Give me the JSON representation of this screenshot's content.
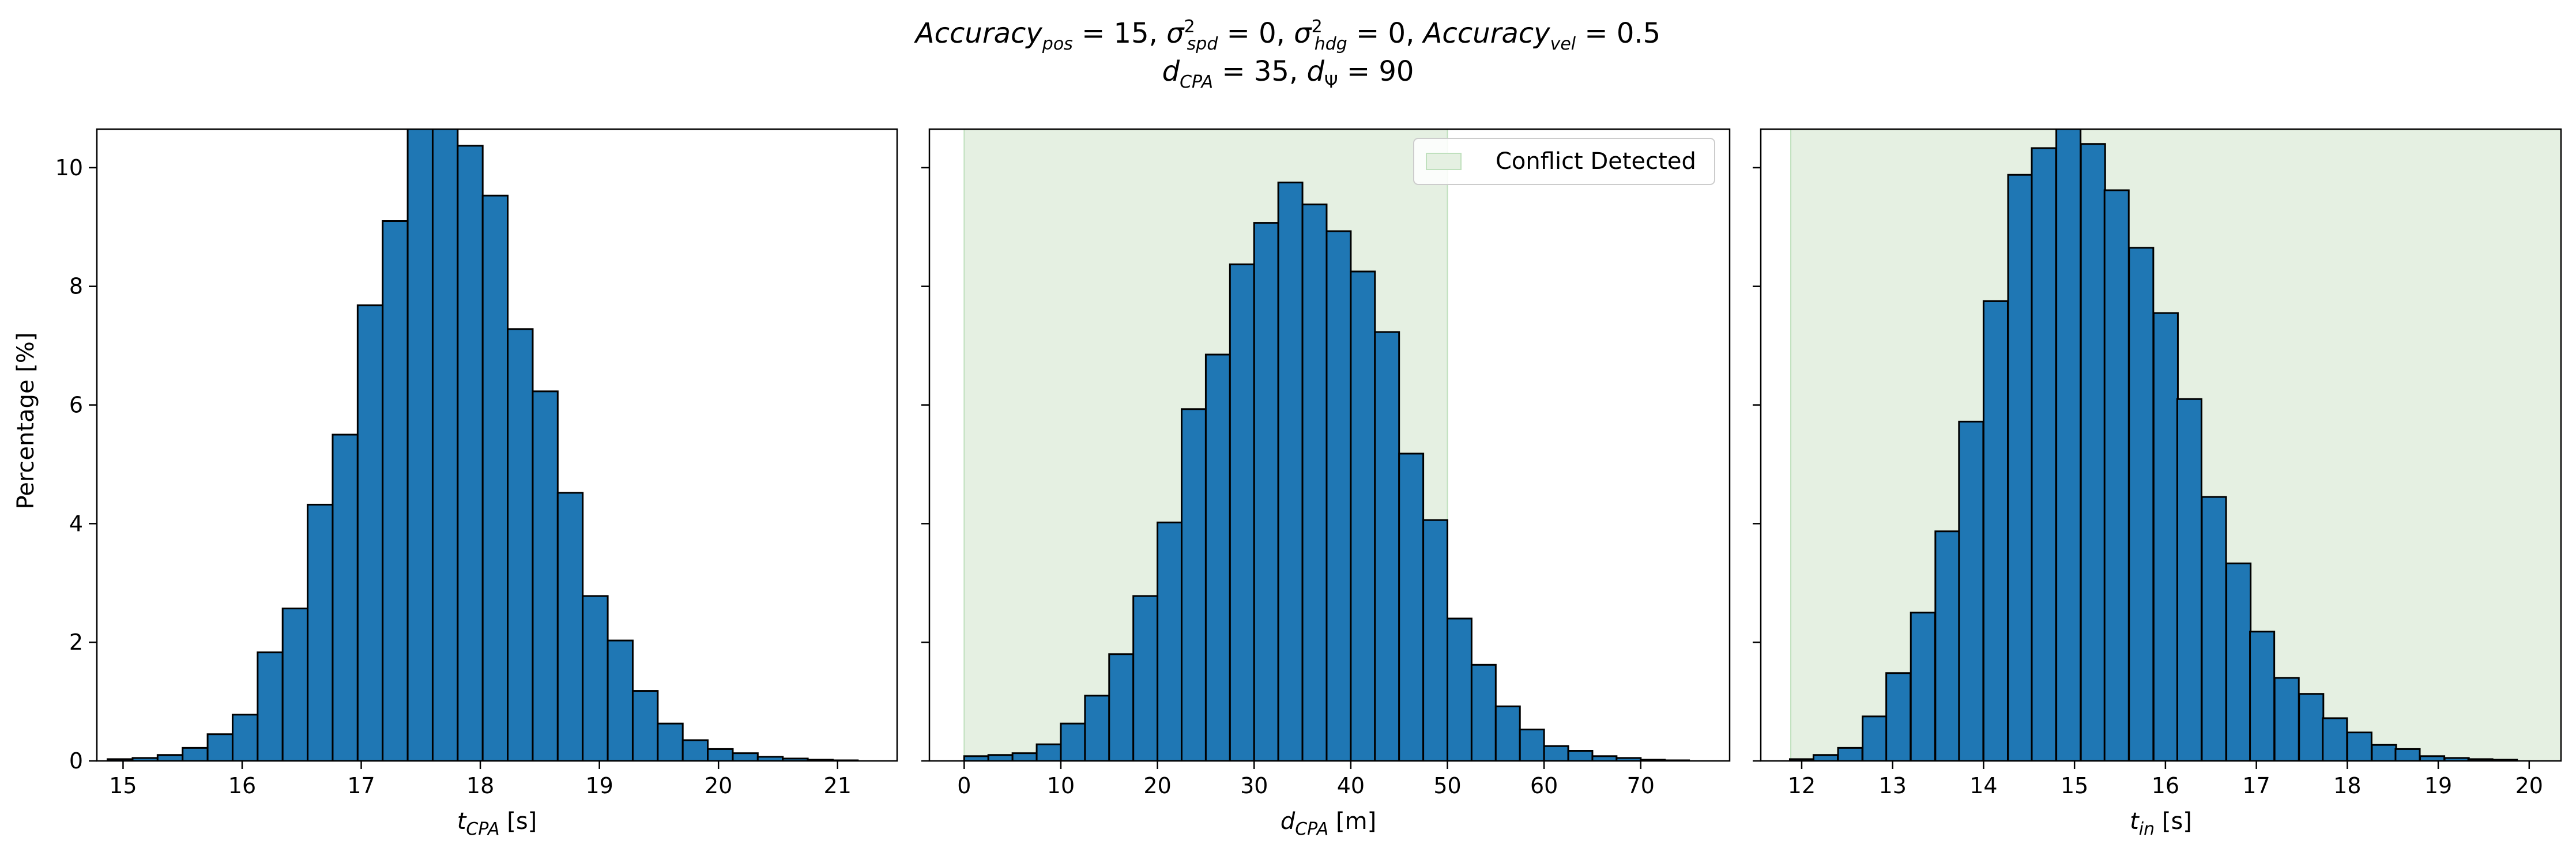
{
  "title": {
    "line1_parts": [
      "Accuracy",
      "pos",
      " = 15, ",
      "σ",
      "2",
      "spd",
      " = 0, ",
      "σ",
      "2",
      "hdg",
      " = 0, ",
      "Accuracy",
      "vel",
      " = 0.5"
    ],
    "line2_parts": [
      "d",
      "CPA",
      " = 35, ",
      "d",
      "Ψ",
      " = 90"
    ]
  },
  "colors": {
    "bar_fill": "#1f77b4",
    "bar_edge": "#000000",
    "shade": "#e5f0e2",
    "shade_edge": "#bfe0bd"
  },
  "chart_data": [
    {
      "type": "bar",
      "xlabel_main": "t",
      "xlabel_sub": "CPA",
      "xlabel_unit": " [s]",
      "ylabel": "Percentage [%]",
      "xlim": [
        14.78,
        21.5
      ],
      "ylim": [
        0,
        10.65
      ],
      "xticks": [
        "15",
        "16",
        "17",
        "18",
        "19",
        "20",
        "21"
      ],
      "yticks": [
        "0",
        "2",
        "4",
        "6",
        "8",
        "10"
      ],
      "bin_width": 0.21,
      "bins": [
        [
          14.87,
          0.03
        ],
        [
          15.08,
          0.05
        ],
        [
          15.29,
          0.1
        ],
        [
          15.5,
          0.22
        ],
        [
          15.71,
          0.45
        ],
        [
          15.92,
          0.78
        ],
        [
          16.13,
          1.83
        ],
        [
          16.34,
          2.57
        ],
        [
          16.55,
          4.32
        ],
        [
          16.76,
          5.5
        ],
        [
          16.97,
          7.68
        ],
        [
          17.18,
          9.1
        ],
        [
          17.39,
          10.8
        ],
        [
          17.6,
          10.75
        ],
        [
          17.81,
          10.37
        ],
        [
          18.02,
          9.53
        ],
        [
          18.23,
          7.28
        ],
        [
          18.44,
          6.23
        ],
        [
          18.65,
          4.52
        ],
        [
          18.86,
          2.78
        ],
        [
          19.07,
          2.03
        ],
        [
          19.28,
          1.18
        ],
        [
          19.49,
          0.63
        ],
        [
          19.7,
          0.35
        ],
        [
          19.91,
          0.2
        ],
        [
          20.12,
          0.13
        ],
        [
          20.33,
          0.07
        ],
        [
          20.54,
          0.04
        ],
        [
          20.75,
          0.02
        ],
        [
          20.96,
          0.01
        ]
      ]
    },
    {
      "type": "bar",
      "xlabel_main": "d",
      "xlabel_sub": "CPA",
      "xlabel_unit": " [m]",
      "xlim": [
        -3.6,
        79.2
      ],
      "ylim": [
        0,
        10.65
      ],
      "xticks": [
        "0",
        "10",
        "20",
        "30",
        "40",
        "50",
        "60",
        "70"
      ],
      "yticks": [
        "0",
        "2",
        "4",
        "6",
        "8",
        "10"
      ],
      "shade": [
        0,
        50
      ],
      "legend": {
        "label": "Conflict Detected",
        "position": "top-right"
      },
      "bin_width": 2.5,
      "bins": [
        [
          0.0,
          0.08
        ],
        [
          2.5,
          0.1
        ],
        [
          5.0,
          0.13
        ],
        [
          7.5,
          0.28
        ],
        [
          10.0,
          0.63
        ],
        [
          12.5,
          1.1
        ],
        [
          15.0,
          1.8
        ],
        [
          17.5,
          2.78
        ],
        [
          20.0,
          4.02
        ],
        [
          22.5,
          5.93
        ],
        [
          25.0,
          6.85
        ],
        [
          27.5,
          8.37
        ],
        [
          30.0,
          9.07
        ],
        [
          32.5,
          9.75
        ],
        [
          35.0,
          9.38
        ],
        [
          37.5,
          8.93
        ],
        [
          40.0,
          8.25
        ],
        [
          42.5,
          7.23
        ],
        [
          45.0,
          5.18
        ],
        [
          47.5,
          4.06
        ],
        [
          50.0,
          2.4
        ],
        [
          52.5,
          1.62
        ],
        [
          55.0,
          0.92
        ],
        [
          57.5,
          0.53
        ],
        [
          60.0,
          0.25
        ],
        [
          62.5,
          0.17
        ],
        [
          65.0,
          0.08
        ],
        [
          67.5,
          0.05
        ],
        [
          70.0,
          0.02
        ],
        [
          72.5,
          0.01
        ]
      ]
    },
    {
      "type": "bar",
      "xlabel_main": "t",
      "xlabel_sub": "in",
      "xlabel_unit": " [s]",
      "xlim": [
        11.55,
        20.35
      ],
      "ylim": [
        0,
        10.65
      ],
      "xticks": [
        "12",
        "13",
        "14",
        "15",
        "16",
        "17",
        "18",
        "19",
        "20"
      ],
      "yticks": [
        "0",
        "2",
        "4",
        "6",
        "8",
        "10"
      ],
      "shade": [
        11.88,
        20.35
      ],
      "bin_width": 0.2667,
      "bins": [
        [
          11.87,
          0.03
        ],
        [
          12.13,
          0.1
        ],
        [
          12.4,
          0.22
        ],
        [
          12.67,
          0.75
        ],
        [
          12.93,
          1.48
        ],
        [
          13.2,
          2.5
        ],
        [
          13.47,
          3.87
        ],
        [
          13.73,
          5.72
        ],
        [
          14.0,
          7.75
        ],
        [
          14.27,
          9.88
        ],
        [
          14.53,
          10.33
        ],
        [
          14.8,
          10.75
        ],
        [
          15.07,
          10.4
        ],
        [
          15.33,
          9.62
        ],
        [
          15.6,
          8.65
        ],
        [
          15.87,
          7.55
        ],
        [
          16.13,
          6.1
        ],
        [
          16.4,
          4.45
        ],
        [
          16.67,
          3.33
        ],
        [
          16.93,
          2.18
        ],
        [
          17.2,
          1.4
        ],
        [
          17.47,
          1.13
        ],
        [
          17.73,
          0.72
        ],
        [
          18.0,
          0.48
        ],
        [
          18.27,
          0.27
        ],
        [
          18.53,
          0.2
        ],
        [
          18.8,
          0.08
        ],
        [
          19.07,
          0.05
        ],
        [
          19.33,
          0.03
        ],
        [
          19.6,
          0.02
        ]
      ]
    }
  ]
}
